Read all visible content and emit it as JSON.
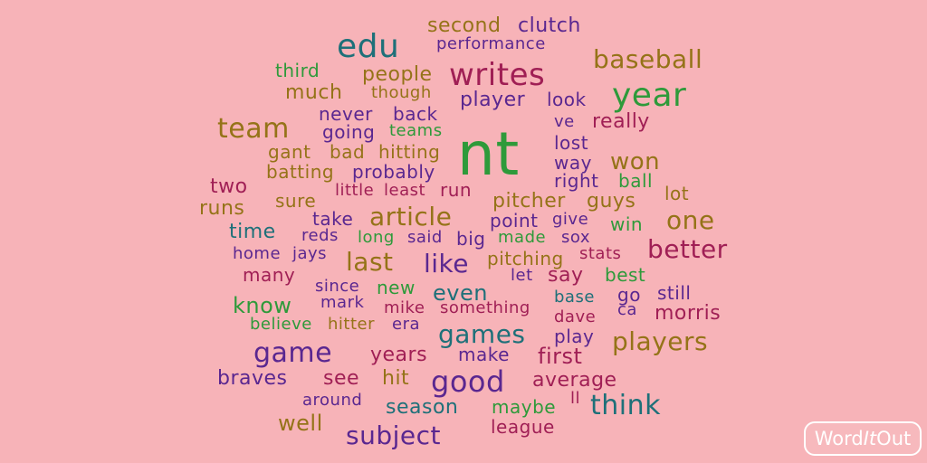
{
  "colors": {
    "background": "#f7b3b8",
    "teal": "#1e7079",
    "green": "#2e9a3a",
    "olive": "#957318",
    "purple": "#5a2790",
    "magenta": "#a01f55",
    "logo": "#ffffff"
  },
  "logo": {
    "part1": "Word",
    "part2": "It",
    "part3": "Out"
  },
  "words": [
    {
      "text": "second",
      "c": "olive"
    },
    {
      "text": "clutch",
      "c": "purple"
    },
    {
      "text": "edu",
      "c": "teal"
    },
    {
      "text": "performance",
      "c": "purple"
    },
    {
      "text": "baseball",
      "c": "olive"
    },
    {
      "text": "third",
      "c": "green"
    },
    {
      "text": "people",
      "c": "olive"
    },
    {
      "text": "writes",
      "c": "magenta"
    },
    {
      "text": "much",
      "c": "olive"
    },
    {
      "text": "though",
      "c": "olive"
    },
    {
      "text": "year",
      "c": "green"
    },
    {
      "text": "player",
      "c": "purple"
    },
    {
      "text": "look",
      "c": "purple"
    },
    {
      "text": "never",
      "c": "purple"
    },
    {
      "text": "back",
      "c": "purple"
    },
    {
      "text": "ve",
      "c": "purple"
    },
    {
      "text": "really",
      "c": "magenta"
    },
    {
      "text": "team",
      "c": "olive"
    },
    {
      "text": "going",
      "c": "purple"
    },
    {
      "text": "teams",
      "c": "green"
    },
    {
      "text": "nt",
      "c": "green"
    },
    {
      "text": "lost",
      "c": "purple"
    },
    {
      "text": "gant",
      "c": "olive"
    },
    {
      "text": "bad",
      "c": "olive"
    },
    {
      "text": "hitting",
      "c": "olive"
    },
    {
      "text": "way",
      "c": "purple"
    },
    {
      "text": "won",
      "c": "olive"
    },
    {
      "text": "batting",
      "c": "olive"
    },
    {
      "text": "probably",
      "c": "purple"
    },
    {
      "text": "right",
      "c": "purple"
    },
    {
      "text": "ball",
      "c": "green"
    },
    {
      "text": "two",
      "c": "magenta"
    },
    {
      "text": "little",
      "c": "magenta"
    },
    {
      "text": "least",
      "c": "magenta"
    },
    {
      "text": "run",
      "c": "magenta"
    },
    {
      "text": "lot",
      "c": "olive"
    },
    {
      "text": "sure",
      "c": "olive"
    },
    {
      "text": "pitcher",
      "c": "olive"
    },
    {
      "text": "guys",
      "c": "olive"
    },
    {
      "text": "runs",
      "c": "olive"
    },
    {
      "text": "take",
      "c": "purple"
    },
    {
      "text": "article",
      "c": "olive"
    },
    {
      "text": "point",
      "c": "purple"
    },
    {
      "text": "give",
      "c": "purple"
    },
    {
      "text": "win",
      "c": "green"
    },
    {
      "text": "one",
      "c": "olive"
    },
    {
      "text": "time",
      "c": "teal"
    },
    {
      "text": "reds",
      "c": "purple"
    },
    {
      "text": "long",
      "c": "green"
    },
    {
      "text": "said",
      "c": "purple"
    },
    {
      "text": "big",
      "c": "purple"
    },
    {
      "text": "made",
      "c": "green"
    },
    {
      "text": "sox",
      "c": "purple"
    },
    {
      "text": "stats",
      "c": "magenta"
    },
    {
      "text": "better",
      "c": "magenta"
    },
    {
      "text": "home",
      "c": "purple"
    },
    {
      "text": "jays",
      "c": "purple"
    },
    {
      "text": "last",
      "c": "olive"
    },
    {
      "text": "like",
      "c": "purple"
    },
    {
      "text": "pitching",
      "c": "olive"
    },
    {
      "text": "say",
      "c": "magenta"
    },
    {
      "text": "best",
      "c": "green"
    },
    {
      "text": "many",
      "c": "magenta"
    },
    {
      "text": "let",
      "c": "purple"
    },
    {
      "text": "since",
      "c": "purple"
    },
    {
      "text": "new",
      "c": "green"
    },
    {
      "text": "even",
      "c": "teal"
    },
    {
      "text": "base",
      "c": "teal"
    },
    {
      "text": "go",
      "c": "purple"
    },
    {
      "text": "still",
      "c": "purple"
    },
    {
      "text": "know",
      "c": "green"
    },
    {
      "text": "mark",
      "c": "purple"
    },
    {
      "text": "mike",
      "c": "magenta"
    },
    {
      "text": "something",
      "c": "magenta"
    },
    {
      "text": "ca",
      "c": "purple"
    },
    {
      "text": "morris",
      "c": "magenta"
    },
    {
      "text": "dave",
      "c": "magenta"
    },
    {
      "text": "believe",
      "c": "green"
    },
    {
      "text": "hitter",
      "c": "olive"
    },
    {
      "text": "era",
      "c": "purple"
    },
    {
      "text": "games",
      "c": "teal"
    },
    {
      "text": "play",
      "c": "purple"
    },
    {
      "text": "players",
      "c": "olive"
    },
    {
      "text": "game",
      "c": "purple"
    },
    {
      "text": "years",
      "c": "magenta"
    },
    {
      "text": "make",
      "c": "purple"
    },
    {
      "text": "first",
      "c": "magenta"
    },
    {
      "text": "braves",
      "c": "purple"
    },
    {
      "text": "see",
      "c": "magenta"
    },
    {
      "text": "hit",
      "c": "olive"
    },
    {
      "text": "good",
      "c": "purple"
    },
    {
      "text": "average",
      "c": "magenta"
    },
    {
      "text": "around",
      "c": "purple"
    },
    {
      "text": "season",
      "c": "teal"
    },
    {
      "text": "maybe",
      "c": "green"
    },
    {
      "text": "ll",
      "c": "magenta"
    },
    {
      "text": "think",
      "c": "teal"
    },
    {
      "text": "well",
      "c": "olive"
    },
    {
      "text": "subject",
      "c": "purple"
    },
    {
      "text": "league",
      "c": "magenta"
    }
  ]
}
